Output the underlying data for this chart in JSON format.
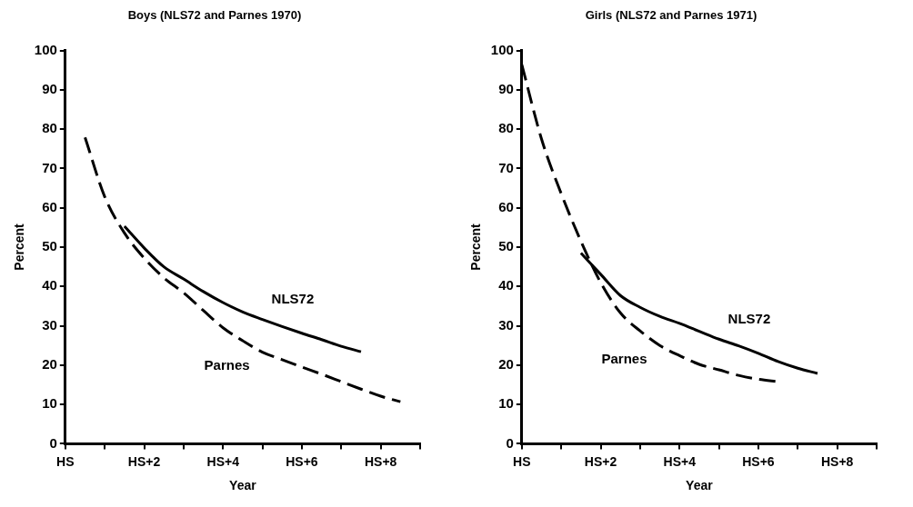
{
  "chart_data": [
    {
      "type": "line",
      "title": "Boys (NLS72 and Parnes 1970)",
      "xlabel": "Year",
      "ylabel": "Percent",
      "ylim": [
        0,
        100
      ],
      "categories": [
        "HS",
        null,
        null,
        null,
        "HS+2",
        null,
        null,
        null,
        "HS+4",
        null,
        null,
        null,
        "HS+6",
        null,
        null,
        null,
        "HS+8",
        null,
        null
      ],
      "yticks": [
        0,
        10,
        20,
        30,
        40,
        50,
        60,
        70,
        80,
        90,
        100
      ],
      "grid": false,
      "legend": false,
      "marker": "none",
      "series": [
        {
          "name": "NLS72",
          "color": "#000000",
          "line_style": "solid",
          "values": [
            null,
            null,
            null,
            55.3,
            49.8,
            45,
            41.9,
            38.7,
            35.9,
            33.5,
            31.6,
            29.8,
            28.1,
            26.5,
            24.8,
            23.4,
            null,
            null,
            null
          ]
        },
        {
          "name": "Parnes",
          "color": "#000000",
          "line_style": "dashed",
          "values": [
            null,
            77.9,
            62.8,
            53.6,
            47.2,
            42.2,
            38.4,
            33.9,
            29.5,
            26.2,
            23.3,
            21.4,
            19.5,
            17.7,
            15.8,
            13.9,
            12.1,
            10.7,
            null
          ]
        }
      ]
    },
    {
      "type": "line",
      "title": "Girls (NLS72 and Parnes 1971)",
      "xlabel": "Year",
      "ylabel": "Percent",
      "ylim": [
        0,
        100
      ],
      "categories": [
        "HS",
        null,
        null,
        null,
        "HS+2",
        null,
        null,
        null,
        "HS+4",
        null,
        null,
        null,
        "HS+6",
        null,
        null,
        null,
        "HS+8",
        null,
        null
      ],
      "yticks": [
        0,
        10,
        20,
        30,
        40,
        50,
        60,
        70,
        80,
        90,
        100
      ],
      "grid": false,
      "legend": false,
      "marker": "none",
      "series": [
        {
          "name": "NLS72",
          "color": "#000000",
          "line_style": "solid",
          "values": [
            null,
            null,
            null,
            48.5,
            43.1,
            37.7,
            34.7,
            32.4,
            30.6,
            28.6,
            26.6,
            24.9,
            23,
            20.9,
            19.2,
            17.9,
            null,
            null,
            null
          ]
        },
        {
          "name": "Parnes",
          "color": "#000000",
          "line_style": "dashed",
          "values": [
            96.4,
            77.5,
            63.6,
            51.5,
            41,
            33.3,
            28.7,
            25,
            22.4,
            20.2,
            18.8,
            17.4,
            16.4,
            15.8,
            null,
            null,
            null,
            null,
            null
          ]
        }
      ]
    }
  ]
}
